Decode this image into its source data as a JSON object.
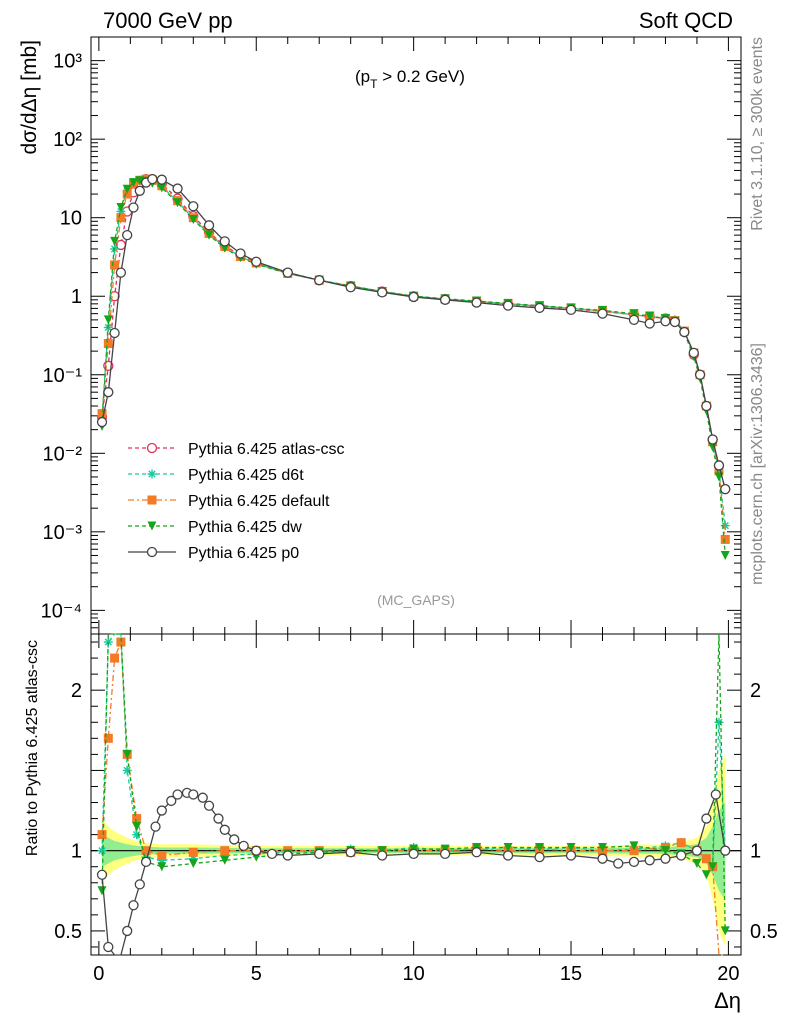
{
  "header": {
    "left": "7000 GeV pp",
    "right": "Soft QCD",
    "cut_label": "(p",
    "cut_sub": "T",
    "cut_rest": " > 0.2 GeV)",
    "watermark": "(MC_GAPS)",
    "side_top": "Rivet 3.1.10, ≥ 300k events",
    "side_bottom": "mcplots.cern.ch [arXiv:1306.3436]"
  },
  "colors": {
    "atlas_csc": "#e0305a",
    "d6t": "#19c9a0",
    "default": "#f47b25",
    "dw": "#13a51a",
    "p0": "#444444",
    "band_yellow": "#ffff80",
    "band_green": "#90ee90"
  },
  "chart_data": [
    {
      "type": "line",
      "title": "",
      "xlabel": "Δη",
      "ylabel": "dσ/dΔη [mb]",
      "yscale": "log",
      "xlim": [
        -0.25,
        20.4
      ],
      "ylim": [
        5e-05,
        2000
      ],
      "ytick_labels": {
        "1e3": "10³",
        "1e2": "10²",
        "10": "10",
        "1": "1",
        "0.1": "10⁻¹",
        "0.01": "10⁻²",
        "0.001": "10⁻³",
        "0.0001": "10⁻⁴"
      },
      "xtick_labels": [
        "0",
        "5",
        "10",
        "15",
        "20"
      ],
      "legend_position": "lower-left",
      "series": [
        {
          "name": "Pythia 6.425 atlas-csc",
          "marker": "open-circle",
          "linestyle": "dashed",
          "x": [
            0.1,
            0.3,
            0.5,
            0.7,
            0.9,
            1.1,
            1.3,
            1.5,
            1.7,
            2.0,
            2.5,
            3.0,
            3.5,
            4.0,
            4.5,
            5.0,
            6.0,
            7.0,
            8.0,
            9.0,
            10.0,
            11.0,
            12.0,
            13.0,
            14.0,
            15.0,
            16.0,
            17.0,
            17.5,
            18.0,
            18.3,
            18.6,
            18.9,
            19.1,
            19.3,
            19.5,
            19.7,
            19.9
          ],
          "y": [
            0.029,
            0.13,
            1.0,
            4.5,
            12.0,
            21.0,
            28.0,
            31.0,
            31.0,
            27.0,
            17.5,
            10.5,
            6.5,
            4.4,
            3.3,
            2.7,
            2.0,
            1.6,
            1.35,
            1.15,
            1.0,
            0.92,
            0.85,
            0.79,
            0.74,
            0.69,
            0.64,
            0.58,
            0.55,
            0.52,
            0.48,
            0.35,
            0.18,
            0.1,
            0.04,
            0.015,
            0.007,
            0.0035
          ]
        },
        {
          "name": "Pythia 6.425 d6t",
          "marker": "star",
          "linestyle": "dashed",
          "x": [
            0.1,
            0.3,
            0.5,
            0.7,
            0.9,
            1.1,
            1.3,
            1.5,
            1.7,
            2.0,
            2.5,
            3.0,
            3.5,
            4.0,
            4.5,
            5.0,
            6.0,
            7.0,
            8.0,
            9.0,
            10.0,
            11.0,
            12.0,
            13.0,
            14.0,
            15.0,
            16.0,
            17.0,
            17.5,
            18.0,
            18.3,
            18.6,
            18.9,
            19.1,
            19.3,
            19.5,
            19.7,
            19.9
          ],
          "y": [
            0.03,
            0.4,
            4.0,
            12.0,
            22.0,
            28.0,
            30.0,
            30.0,
            29.0,
            25.0,
            16.0,
            9.8,
            6.2,
            4.2,
            3.2,
            2.6,
            1.95,
            1.6,
            1.35,
            1.15,
            1.0,
            0.92,
            0.86,
            0.8,
            0.75,
            0.7,
            0.65,
            0.58,
            0.55,
            0.52,
            0.5,
            0.36,
            0.19,
            0.1,
            0.04,
            0.014,
            0.006,
            0.0012
          ]
        },
        {
          "name": "Pythia 6.425 default",
          "marker": "square",
          "linestyle": "dashdot",
          "x": [
            0.1,
            0.3,
            0.5,
            0.7,
            0.9,
            1.1,
            1.3,
            1.5,
            1.7,
            2.0,
            2.5,
            3.0,
            3.5,
            4.0,
            4.5,
            5.0,
            6.0,
            7.0,
            8.0,
            9.0,
            10.0,
            11.0,
            12.0,
            13.0,
            14.0,
            15.0,
            16.0,
            17.0,
            17.5,
            18.0,
            18.3,
            18.6,
            18.9,
            19.1,
            19.3,
            19.5,
            19.7,
            19.9
          ],
          "y": [
            0.032,
            0.25,
            2.5,
            10.0,
            20.0,
            27.0,
            30.0,
            31.0,
            30.0,
            25.5,
            16.5,
            10.0,
            6.3,
            4.3,
            3.2,
            2.65,
            1.95,
            1.6,
            1.35,
            1.15,
            1.0,
            0.92,
            0.86,
            0.8,
            0.75,
            0.7,
            0.65,
            0.58,
            0.55,
            0.52,
            0.49,
            0.36,
            0.19,
            0.1,
            0.04,
            0.014,
            0.006,
            0.0008
          ]
        },
        {
          "name": "Pythia 6.425 dw",
          "marker": "triangle-down",
          "linestyle": "dashed",
          "x": [
            0.1,
            0.3,
            0.5,
            0.7,
            0.9,
            1.1,
            1.3,
            1.5,
            1.7,
            2.0,
            2.5,
            3.0,
            3.5,
            4.0,
            4.5,
            5.0,
            6.0,
            7.0,
            8.0,
            9.0,
            10.0,
            11.0,
            12.0,
            13.0,
            14.0,
            15.0,
            16.0,
            17.0,
            17.5,
            18.0,
            18.3,
            18.6,
            18.9,
            19.1,
            19.3,
            19.5,
            19.7,
            19.9
          ],
          "y": [
            0.022,
            0.5,
            5.0,
            13.5,
            23.0,
            28.0,
            29.5,
            29.0,
            27.5,
            24.0,
            15.5,
            9.5,
            6.0,
            4.1,
            3.1,
            2.55,
            1.95,
            1.6,
            1.35,
            1.15,
            1.0,
            0.93,
            0.87,
            0.81,
            0.76,
            0.71,
            0.66,
            0.6,
            0.56,
            0.52,
            0.48,
            0.34,
            0.17,
            0.09,
            0.035,
            0.012,
            0.005,
            0.0005
          ]
        },
        {
          "name": "Pythia 6.425 p0",
          "marker": "open-circle",
          "linestyle": "solid",
          "x": [
            0.1,
            0.3,
            0.5,
            0.7,
            0.9,
            1.1,
            1.3,
            1.5,
            1.7,
            2.0,
            2.5,
            3.0,
            3.5,
            4.0,
            4.5,
            5.0,
            6.0,
            7.0,
            8.0,
            9.0,
            10.0,
            11.0,
            12.0,
            13.0,
            14.0,
            15.0,
            16.0,
            17.0,
            17.5,
            18.0,
            18.3,
            18.6,
            18.9,
            19.1,
            19.3,
            19.5,
            19.7,
            19.9
          ],
          "y": [
            0.025,
            0.06,
            0.34,
            2.0,
            6.0,
            13.5,
            22.0,
            28.0,
            31.0,
            30.5,
            23.5,
            14.0,
            8.0,
            5.0,
            3.5,
            2.75,
            2.0,
            1.6,
            1.3,
            1.12,
            0.98,
            0.9,
            0.83,
            0.76,
            0.71,
            0.67,
            0.6,
            0.5,
            0.45,
            0.48,
            0.47,
            0.35,
            0.19,
            0.1,
            0.04,
            0.015,
            0.007,
            0.0035
          ]
        }
      ]
    },
    {
      "type": "line",
      "title": "",
      "xlabel": "Δη",
      "ylabel": "Ratio to Pythia 6.425 atlas-csc",
      "xlim": [
        -0.25,
        20.4
      ],
      "ylim": [
        0.35,
        2.35
      ],
      "ytick_labels": [
        "0.5",
        "1",
        "2"
      ],
      "reference_line": 1,
      "series": [
        {
          "name": "Pythia 6.425 d6t",
          "x": [
            0.1,
            0.3,
            0.5,
            0.7,
            0.9,
            1.2,
            1.5,
            2.0,
            3.0,
            4.0,
            5.0,
            6.0,
            7.0,
            8.0,
            9.0,
            10.0,
            11.0,
            12.0,
            13.0,
            14.0,
            15.0,
            16.0,
            17.0,
            18.0,
            18.5,
            19.0,
            19.3,
            19.5,
            19.7,
            19.9
          ],
          "y": [
            1.0,
            2.3,
            2.35,
            2.35,
            1.5,
            1.1,
            0.96,
            0.94,
            0.95,
            0.97,
            0.98,
            0.99,
            1.0,
            1.01,
            1.0,
            1.02,
            1.0,
            1.01,
            1.02,
            1.01,
            1.02,
            1.0,
            1.01,
            1.03,
            1.05,
            1.0,
            0.95,
            0.9,
            1.8,
            1.0
          ]
        },
        {
          "name": "Pythia 6.425 default",
          "x": [
            0.1,
            0.3,
            0.5,
            0.7,
            0.9,
            1.2,
            1.5,
            2.0,
            3.0,
            4.0,
            5.0,
            6.0,
            7.0,
            8.0,
            9.0,
            10.0,
            11.0,
            12.0,
            13.0,
            14.0,
            15.0,
            16.0,
            17.0,
            18.0,
            18.5,
            19.0,
            19.3,
            19.5,
            19.7,
            19.9
          ],
          "y": [
            1.1,
            1.7,
            2.2,
            2.3,
            1.6,
            1.2,
            1.0,
            0.97,
            0.99,
            1.0,
            1.0,
            1.0,
            1.0,
            0.99,
            1.0,
            1.0,
            1.0,
            1.01,
            1.0,
            1.01,
            1.0,
            1.0,
            1.0,
            1.02,
            1.05,
            1.0,
            0.95,
            0.9,
            0.3,
            0.35
          ]
        },
        {
          "name": "Pythia 6.425 dw",
          "x": [
            0.1,
            0.3,
            0.5,
            0.7,
            0.9,
            1.2,
            1.5,
            2.0,
            3.0,
            4.0,
            5.0,
            6.0,
            7.0,
            8.0,
            9.0,
            10.0,
            11.0,
            12.0,
            13.0,
            14.0,
            15.0,
            16.0,
            17.0,
            18.0,
            18.5,
            19.0,
            19.3,
            19.5,
            19.7,
            19.9
          ],
          "y": [
            0.75,
            2.35,
            2.35,
            2.35,
            1.6,
            1.15,
            0.93,
            0.9,
            0.92,
            0.94,
            0.96,
            0.98,
            0.99,
            1.0,
            1.0,
            1.01,
            1.01,
            1.02,
            1.02,
            1.02,
            1.02,
            1.02,
            1.03,
            1.0,
            0.98,
            0.92,
            0.85,
            0.9,
            2.35,
            0.5
          ]
        },
        {
          "name": "Pythia 6.425 p0",
          "x": [
            0.1,
            0.3,
            0.5,
            0.7,
            0.9,
            1.1,
            1.3,
            1.5,
            1.8,
            2.0,
            2.3,
            2.5,
            2.8,
            3.0,
            3.3,
            3.5,
            3.8,
            4.0,
            4.3,
            4.6,
            5.0,
            5.5,
            6.0,
            7.0,
            8.0,
            9.0,
            10.0,
            11.0,
            12.0,
            13.0,
            14.0,
            15.0,
            16.0,
            16.5,
            17.0,
            17.5,
            18.0,
            18.5,
            19.0,
            19.3,
            19.6,
            19.9
          ],
          "y": [
            0.85,
            0.4,
            0.3,
            0.3,
            0.5,
            0.66,
            0.79,
            0.93,
            1.15,
            1.25,
            1.31,
            1.35,
            1.36,
            1.35,
            1.33,
            1.28,
            1.2,
            1.13,
            1.07,
            1.03,
            1.0,
            0.98,
            0.97,
            0.98,
            0.99,
            0.97,
            0.98,
            0.98,
            0.99,
            0.97,
            0.96,
            0.97,
            0.95,
            0.92,
            0.93,
            0.94,
            0.95,
            0.97,
            1.0,
            1.2,
            1.35,
            1.0
          ]
        }
      ],
      "uncertainty_band": {
        "x": [
          0.1,
          0.3,
          0.5,
          0.7,
          0.9,
          1.2,
          1.5,
          2.0,
          3.0,
          5.0,
          10.0,
          15.0,
          18.0,
          18.5,
          19.0,
          19.3,
          19.5,
          19.7,
          19.9
        ],
        "yellow_half_width": [
          0.2,
          0.15,
          0.12,
          0.1,
          0.08,
          0.06,
          0.05,
          0.04,
          0.04,
          0.03,
          0.03,
          0.03,
          0.04,
          0.05,
          0.08,
          0.15,
          0.3,
          0.5,
          0.6
        ],
        "green_half_width": [
          0.1,
          0.08,
          0.06,
          0.05,
          0.04,
          0.03,
          0.025,
          0.02,
          0.02,
          0.015,
          0.015,
          0.015,
          0.02,
          0.03,
          0.04,
          0.08,
          0.15,
          0.25,
          0.3
        ]
      }
    }
  ]
}
